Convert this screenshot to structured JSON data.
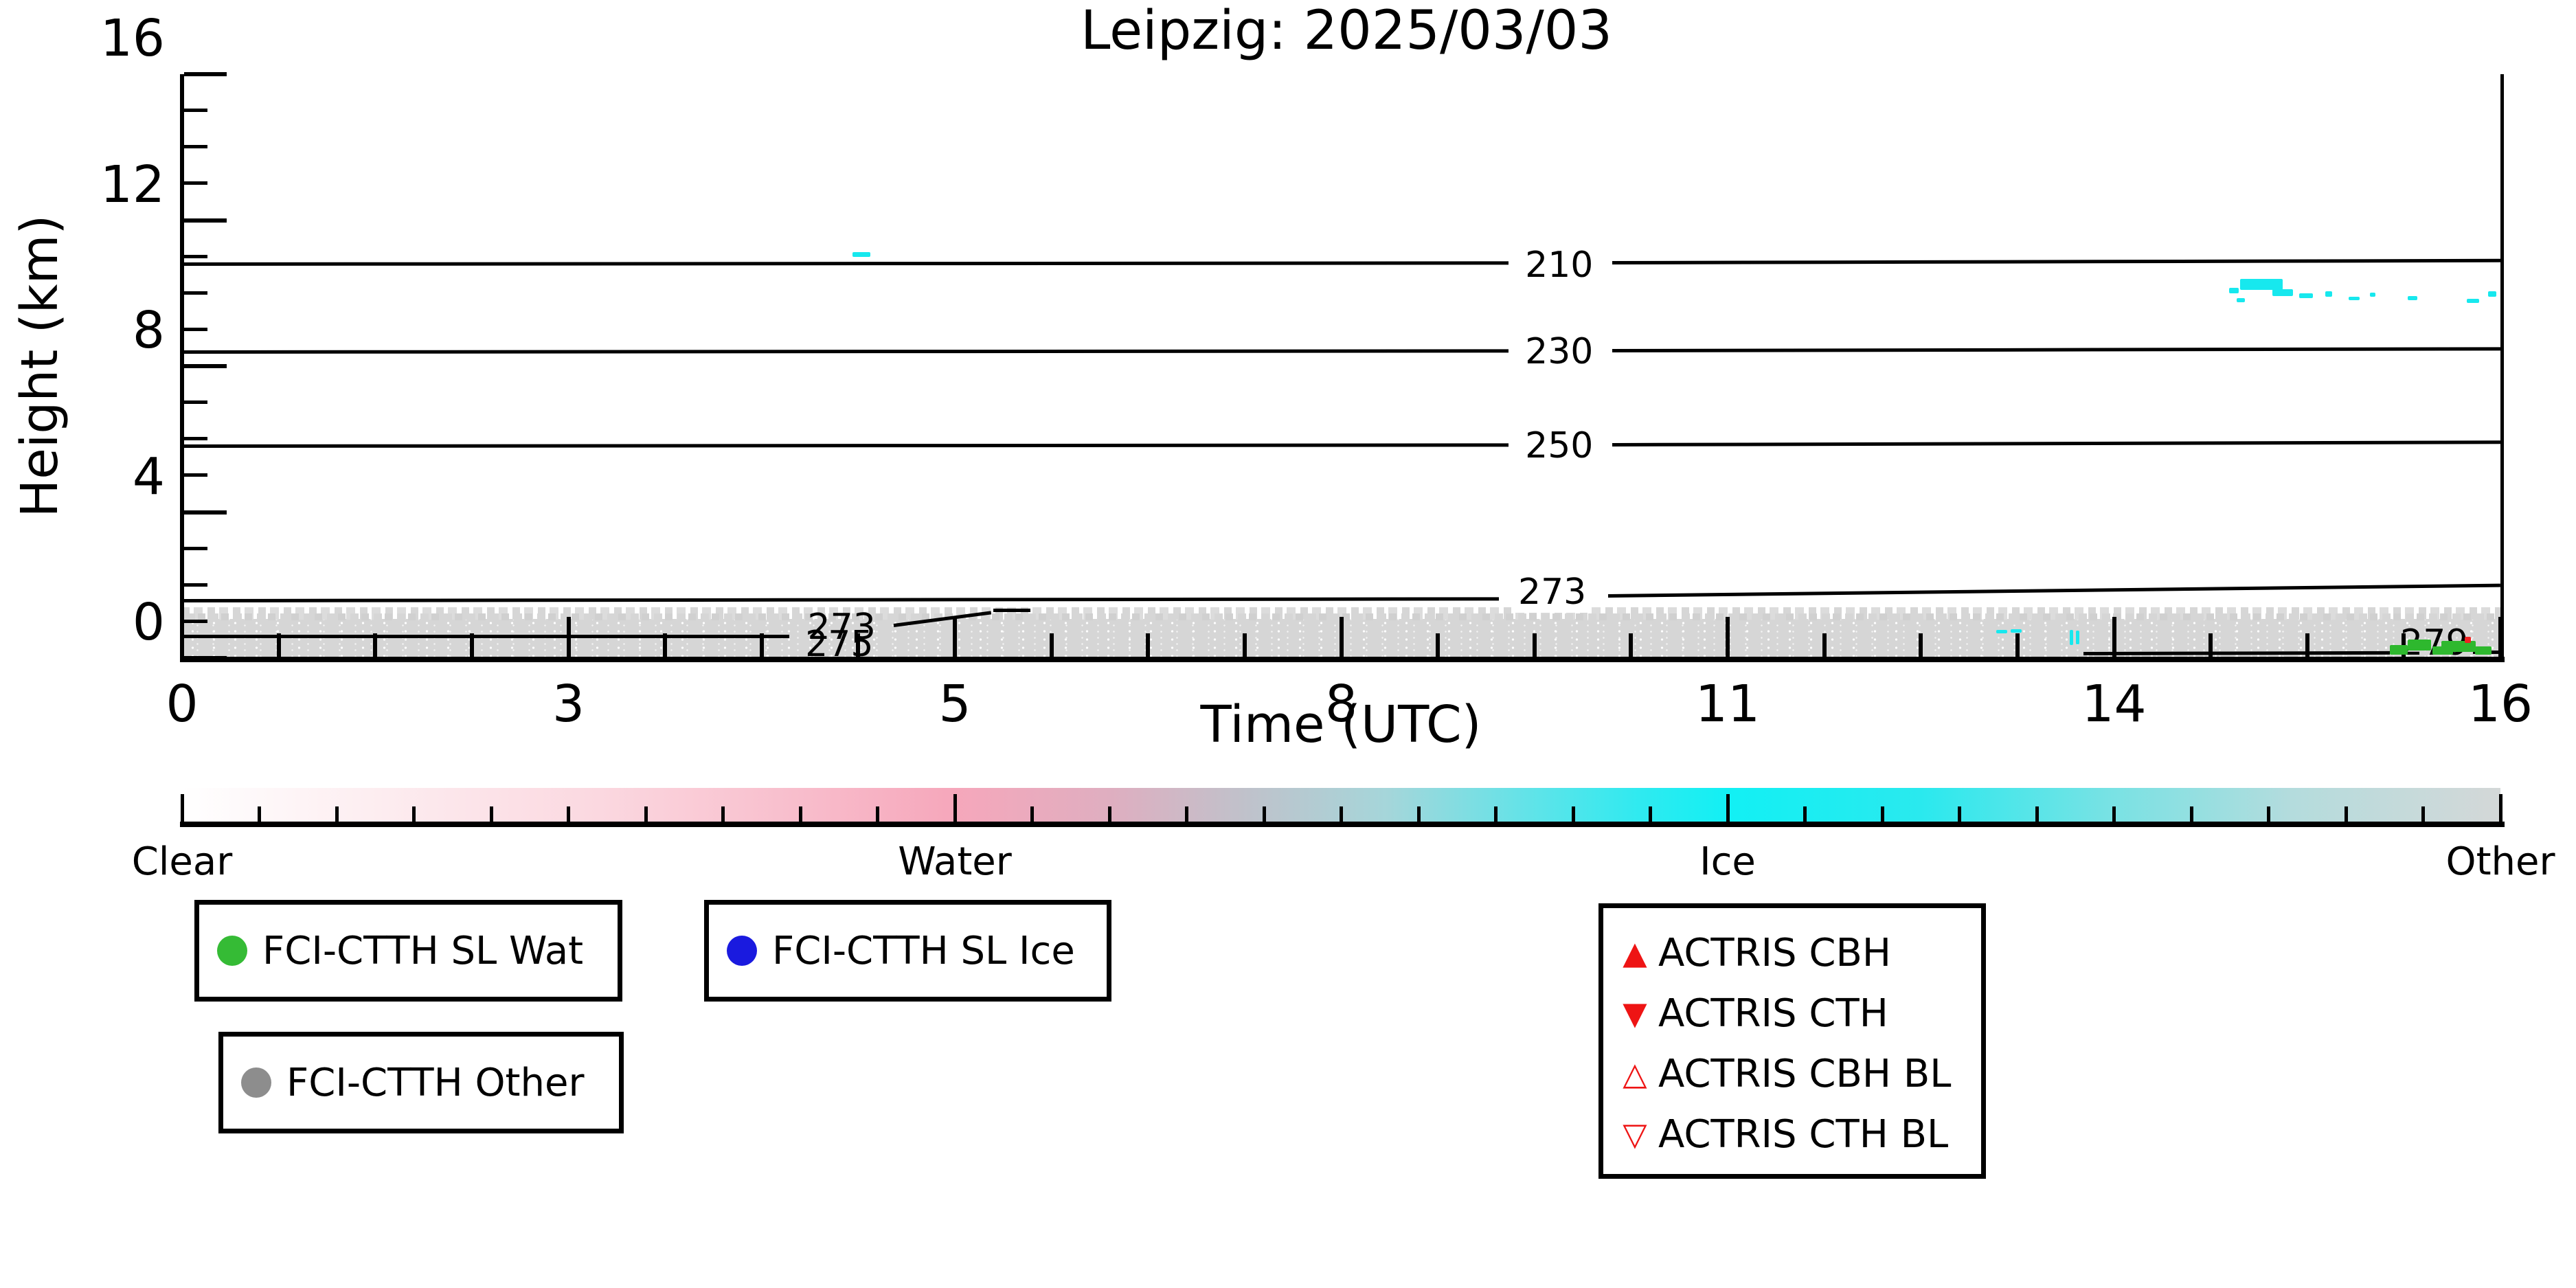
{
  "chart_data": {
    "type": "heatmap",
    "title": "Leipzig: 2025/03/03",
    "xlabel": "Time (UTC)",
    "ylabel": "Height (km)",
    "x_ticks": [
      "0",
      "3",
      "5",
      "8",
      "11",
      "14",
      "16"
    ],
    "y_ticks": [
      "0",
      "4",
      "8",
      "12",
      "16"
    ],
    "ylim_km": [
      0,
      16
    ],
    "xlim_utc": [
      0,
      16
    ],
    "grid": false,
    "background_category_band": {
      "category": "Other",
      "color": "#d6d6d6",
      "top_km": 1.08,
      "extent_frac": [
        0,
        1
      ],
      "description": "speckled light-gray FCI-CTTH 'Other' classification hugging the surface all day"
    },
    "temperature_contours_K": [
      {
        "label": "210",
        "label_pos": [
          0.594,
          10.77
        ],
        "segments": [
          [
            0.0,
            10.8,
            0.572,
            10.83
          ],
          [
            0.617,
            10.84,
            1.0,
            10.9
          ]
        ]
      },
      {
        "label": "230",
        "label_pos": [
          0.594,
          8.39
        ],
        "segments": [
          [
            0.0,
            8.39,
            0.572,
            8.42
          ],
          [
            0.617,
            8.43,
            1.0,
            8.48
          ]
        ]
      },
      {
        "label": "250",
        "label_pos": [
          0.594,
          5.81
        ],
        "segments": [
          [
            0.0,
            5.8,
            0.572,
            5.83
          ],
          [
            0.617,
            5.85,
            1.0,
            5.92
          ]
        ]
      },
      {
        "label": "273",
        "label_pos": [
          0.591,
          1.8
        ],
        "segments": [
          [
            0.0,
            1.58,
            0.568,
            1.63
          ],
          [
            0.615,
            1.7,
            1.0,
            1.99
          ]
        ]
      },
      {
        "label": "273",
        "label_pos": [
          0.2845,
          0.85
        ],
        "nobg": true,
        "segments": []
      },
      {
        "label": "275",
        "label_pos": [
          0.2835,
          0.37
        ],
        "nobg": true,
        "segments": [
          [
            0.001,
            0.6,
            0.262,
            0.6
          ],
          [
            0.307,
            0.9,
            0.349,
            1.25
          ],
          [
            0.35,
            1.3,
            0.366,
            1.3
          ]
        ]
      },
      {
        "label": "279",
        "label_pos": [
          0.9715,
          0.42
        ],
        "nobg": true,
        "segments": [
          [
            0.82,
            0.13,
            0.952,
            0.15
          ],
          [
            0.988,
            0.16,
            1.0,
            0.16
          ]
        ]
      }
    ],
    "ice_pixels_color": "#17e8ee",
    "ice_pixels": [
      {
        "f": 0.293,
        "km": 11.05,
        "w": 26,
        "h": 7,
        "t_utc": 4.5
      },
      {
        "f": 0.785,
        "km": 0.73,
        "w": 16,
        "h": 5,
        "t_utc": 13.1
      },
      {
        "f": 0.791,
        "km": 0.75,
        "w": 16,
        "h": 5,
        "t_utc": 13.2
      },
      {
        "f": 0.815,
        "km": 0.57,
        "w": 5,
        "h": 22,
        "t_utc": 13.7
      },
      {
        "f": 0.8175,
        "km": 0.56,
        "w": 5,
        "h": 20,
        "t_utc": 13.7
      },
      {
        "f": 0.885,
        "km": 10.08,
        "w": 14,
        "h": 8,
        "t_utc": 14.6
      },
      {
        "f": 0.888,
        "km": 9.8,
        "w": 12,
        "h": 6,
        "t_utc": 14.7
      },
      {
        "f": 0.897,
        "km": 10.24,
        "w": 62,
        "h": 16,
        "t_utc": 14.8
      },
      {
        "f": 0.906,
        "km": 10.02,
        "w": 30,
        "h": 10,
        "t_utc": 14.9
      },
      {
        "f": 0.916,
        "km": 9.93,
        "w": 20,
        "h": 7,
        "t_utc": 15.0
      },
      {
        "f": 0.926,
        "km": 9.97,
        "w": 10,
        "h": 8,
        "t_utc": 15.1
      },
      {
        "f": 0.937,
        "km": 9.86,
        "w": 16,
        "h": 5,
        "t_utc": 15.2
      },
      {
        "f": 0.945,
        "km": 9.95,
        "w": 8,
        "h": 6,
        "t_utc": 15.3
      },
      {
        "f": 0.962,
        "km": 9.86,
        "w": 14,
        "h": 6,
        "t_utc": 15.6
      },
      {
        "f": 0.988,
        "km": 9.79,
        "w": 18,
        "h": 6,
        "t_utc": 15.9
      },
      {
        "f": 0.9965,
        "km": 9.97,
        "w": 12,
        "h": 8,
        "t_utc": 16.0
      }
    ],
    "water_pixels_color": "#2eb82e",
    "water_pixels": [
      {
        "f": 0.956,
        "km": 0.23,
        "w": 26,
        "h": 14,
        "t_utc": 15.5
      },
      {
        "f": 0.965,
        "km": 0.36,
        "w": 34,
        "h": 16,
        "t_utc": 15.6
      },
      {
        "f": 0.975,
        "km": 0.21,
        "w": 30,
        "h": 12,
        "t_utc": 15.7
      },
      {
        "f": 0.982,
        "km": 0.32,
        "w": 50,
        "h": 16,
        "t_utc": 15.8
      },
      {
        "f": 0.9925,
        "km": 0.2,
        "w": 24,
        "h": 12,
        "t_utc": 15.9
      }
    ],
    "misc_pixels": [
      {
        "color": "#ee2222",
        "f": 0.986,
        "km": 0.49,
        "w": 9,
        "h": 9,
        "t_utc": 15.9
      }
    ],
    "colorbar": {
      "labels": [
        "Clear",
        "Water",
        "Ice",
        "Other"
      ],
      "gradient": [
        [
          "0%",
          "#ffffff"
        ],
        [
          "8%",
          "#fdeef1"
        ],
        [
          "18%",
          "#fbd8e0"
        ],
        [
          "27%",
          "#f8bccb"
        ],
        [
          "33.3%",
          "#f6a7bb"
        ],
        [
          "40%",
          "#dfaec0"
        ],
        [
          "46%",
          "#bfc2cb"
        ],
        [
          "52%",
          "#a5d6da"
        ],
        [
          "58%",
          "#62e3e8"
        ],
        [
          "63%",
          "#2eeaf0"
        ],
        [
          "66.7%",
          "#12f0f4"
        ],
        [
          "75%",
          "#2ae9ee"
        ],
        [
          "83%",
          "#77e2e4"
        ],
        [
          "91%",
          "#b4dcdd"
        ],
        [
          "100%",
          "#d4d8d8"
        ]
      ],
      "n_minor_ticks_per_section": 9
    }
  },
  "legends": {
    "fci_wat": {
      "marker": "circle",
      "marker_color": "#35bb35",
      "label": "FCI-CTTH SL Wat"
    },
    "fci_ice": {
      "marker": "circle",
      "marker_color": "#1a1adf",
      "label": "FCI-CTTH SL Ice"
    },
    "fci_other": {
      "marker": "circle",
      "marker_color": "#8d8d8d",
      "label": "FCI-CTTH Other"
    },
    "actris": {
      "marker_color": "#ee1414",
      "items": [
        {
          "glyph": "▲",
          "label": "ACTRIS CBH"
        },
        {
          "glyph": "▼",
          "label": "ACTRIS CTH"
        },
        {
          "glyph": "△",
          "label": "ACTRIS CBH BL"
        },
        {
          "glyph": "▽",
          "label": "ACTRIS CTH BL"
        }
      ]
    }
  }
}
